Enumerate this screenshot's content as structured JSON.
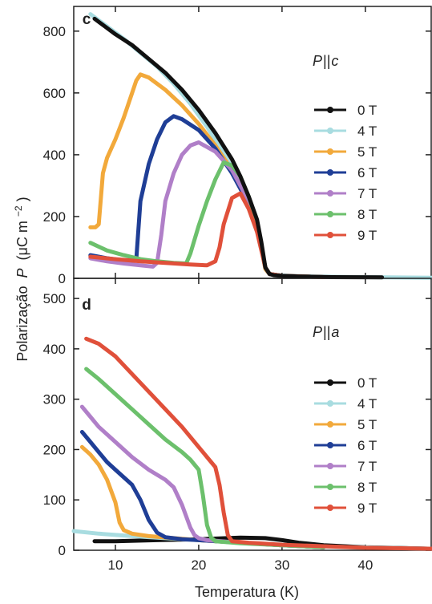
{
  "figure": {
    "ylabel_prefix": "Polarização",
    "ylabel_symbol": "P",
    "ylabel_unit": "(μC m",
    "ylabel_exponent": "−2",
    "ylabel_close": ")",
    "xlabel": "Temperatura (K)"
  },
  "series_colors": {
    "0 T": "#111111",
    "4 T": "#a8dce0",
    "5 T": "#f2a93b",
    "6 T": "#1f3e96",
    "7 T": "#b07fc8",
    "8 T": "#6cc06c",
    "9 T": "#e0503a"
  },
  "chart_data": [
    {
      "type": "line",
      "panel_label": "c",
      "orientation_symbol": "P",
      "orientation_sep": "||",
      "orientation_axis": "c",
      "xlim": [
        5,
        48
      ],
      "ylim": [
        0,
        880
      ],
      "xticks": [
        10,
        20,
        30,
        40
      ],
      "yticks": [
        0,
        200,
        400,
        600,
        800
      ],
      "legend_position": "right",
      "series": [
        {
          "name": "0 T",
          "x": [
            7.5,
            8.5,
            10,
            12,
            14,
            16,
            18,
            20,
            22,
            24,
            25,
            26,
            27,
            27.5,
            28,
            28.5,
            29,
            30,
            32,
            36,
            42
          ],
          "y": [
            840,
            820,
            790,
            755,
            710,
            665,
            610,
            545,
            470,
            385,
            330,
            265,
            190,
            120,
            35,
            14,
            10,
            8,
            6,
            4,
            3
          ]
        },
        {
          "name": "4 T",
          "x": [
            7,
            9,
            11,
            13,
            15,
            17,
            19,
            21,
            23,
            25,
            26,
            27,
            27.5,
            28,
            28.5,
            29,
            30,
            34,
            40,
            48
          ],
          "y": [
            855,
            815,
            775,
            730,
            685,
            630,
            565,
            490,
            405,
            310,
            255,
            180,
            110,
            30,
            14,
            11,
            9,
            6,
            4,
            2
          ]
        },
        {
          "name": "5 T",
          "x": [
            7,
            7.6,
            8,
            8.5,
            9,
            10,
            11,
            12,
            12.5,
            13,
            14,
            16,
            18,
            20,
            22,
            24,
            25,
            26,
            27,
            27.5,
            28,
            28.5,
            30,
            35
          ],
          "y": [
            165,
            165,
            175,
            340,
            390,
            450,
            520,
            600,
            640,
            660,
            650,
            610,
            560,
            500,
            430,
            350,
            300,
            245,
            170,
            100,
            30,
            14,
            8,
            4
          ]
        },
        {
          "name": "6 T",
          "x": [
            7,
            9,
            11,
            12,
            12.5,
            13,
            14,
            15,
            16,
            17,
            18,
            20,
            22,
            24,
            26,
            27,
            28,
            28.5,
            30,
            35
          ],
          "y": [
            75,
            65,
            58,
            55,
            60,
            250,
            370,
            450,
            505,
            525,
            515,
            480,
            420,
            340,
            240,
            165,
            35,
            14,
            8,
            4
          ]
        },
        {
          "name": "7 T",
          "x": [
            7,
            9,
            11,
            13,
            14.5,
            15,
            15.5,
            16,
            17,
            18,
            19,
            20,
            22,
            24,
            26,
            27,
            28,
            28.5,
            30,
            35
          ],
          "y": [
            65,
            55,
            48,
            42,
            38,
            50,
            140,
            250,
            340,
            400,
            430,
            440,
            410,
            350,
            250,
            175,
            35,
            14,
            8,
            4
          ]
        },
        {
          "name": "8 T",
          "x": [
            7,
            9,
            11,
            13,
            15,
            17,
            18.5,
            19,
            20,
            21,
            22,
            23,
            24,
            25,
            26,
            27,
            28,
            28.5,
            30,
            35
          ],
          "y": [
            115,
            90,
            75,
            62,
            55,
            50,
            48,
            80,
            170,
            250,
            320,
            375,
            365,
            330,
            265,
            180,
            35,
            14,
            8,
            4
          ]
        },
        {
          "name": "9 T",
          "x": [
            7,
            10,
            13,
            16,
            19,
            21,
            22,
            22.5,
            23,
            24,
            25,
            26,
            27,
            28,
            28.5,
            30,
            35
          ],
          "y": [
            70,
            62,
            55,
            50,
            45,
            42,
            55,
            100,
            175,
            260,
            275,
            225,
            150,
            35,
            14,
            8,
            4
          ]
        }
      ]
    },
    {
      "type": "line",
      "panel_label": "d",
      "orientation_symbol": "P",
      "orientation_sep": "||",
      "orientation_axis": "a",
      "xlim": [
        5,
        48
      ],
      "ylim": [
        0,
        540
      ],
      "xticks": [
        10,
        20,
        30,
        40
      ],
      "yticks": [
        0,
        100,
        200,
        300,
        400,
        500
      ],
      "legend_position": "right",
      "series": [
        {
          "name": "0 T",
          "x": [
            7.5,
            10,
            15,
            20,
            25,
            28,
            30,
            32,
            35,
            40,
            48
          ],
          "y": [
            18,
            18,
            20,
            22,
            25,
            24,
            20,
            15,
            10,
            6,
            3
          ]
        },
        {
          "name": "4 T",
          "x": [
            5,
            8,
            12,
            16,
            20,
            24,
            28,
            32,
            36,
            42,
            48
          ],
          "y": [
            38,
            33,
            28,
            24,
            20,
            16,
            12,
            9,
            7,
            5,
            3
          ]
        },
        {
          "name": "5 T",
          "x": [
            6,
            7,
            8,
            9,
            10,
            10.5,
            11,
            12,
            14,
            17,
            20,
            25,
            30,
            35
          ],
          "y": [
            205,
            190,
            170,
            140,
            95,
            55,
            40,
            33,
            28,
            24,
            20,
            15,
            10,
            6
          ]
        },
        {
          "name": "6 T",
          "x": [
            6,
            7,
            8,
            9,
            10,
            11,
            12,
            13,
            14,
            15,
            16,
            18,
            20,
            25,
            30,
            35
          ],
          "y": [
            235,
            215,
            195,
            175,
            160,
            145,
            130,
            100,
            60,
            35,
            26,
            22,
            20,
            15,
            10,
            6
          ]
        },
        {
          "name": "7 T",
          "x": [
            6,
            7,
            8,
            10,
            12,
            14,
            16,
            17,
            18,
            19,
            19.5,
            20,
            21,
            25,
            30,
            35
          ],
          "y": [
            285,
            265,
            245,
            215,
            185,
            160,
            140,
            125,
            90,
            45,
            30,
            24,
            20,
            15,
            10,
            6
          ]
        },
        {
          "name": "8 T",
          "x": [
            6.5,
            8,
            10,
            12,
            14,
            16,
            18,
            19,
            20,
            20.5,
            21,
            21.5,
            22,
            25,
            30,
            35
          ],
          "y": [
            360,
            340,
            310,
            280,
            250,
            220,
            195,
            180,
            160,
            110,
            50,
            25,
            18,
            14,
            10,
            6
          ]
        },
        {
          "name": "9 T",
          "x": [
            6.5,
            8,
            10,
            12,
            14,
            16,
            18,
            20,
            22,
            22.5,
            23,
            23.5,
            24,
            26,
            30,
            35,
            40,
            48
          ],
          "y": [
            420,
            410,
            385,
            350,
            315,
            280,
            245,
            205,
            165,
            130,
            75,
            30,
            18,
            15,
            11,
            8,
            5,
            3
          ]
        }
      ]
    }
  ]
}
